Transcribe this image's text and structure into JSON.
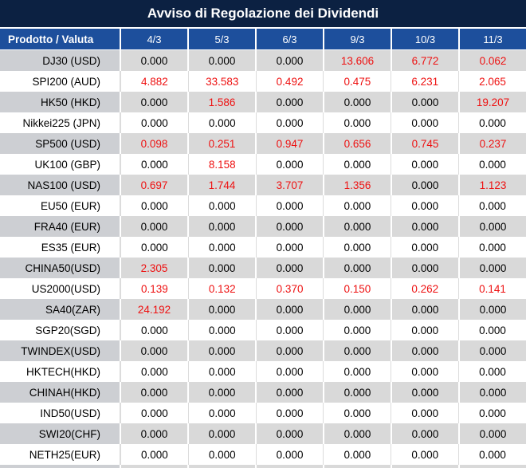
{
  "chart_data": {
    "type": "table",
    "title": "Avviso di Regolazione dei Dividendi",
    "columns": [
      "Prodotto / Valuta",
      "4/3",
      "5/3",
      "6/3",
      "9/3",
      "10/3",
      "11/3"
    ],
    "rows": [
      {
        "product": "DJ30 (USD)",
        "values": [
          "0.000",
          "0.000",
          "0.000",
          "13.606",
          "6.772",
          "0.062"
        ],
        "red": [
          false,
          false,
          false,
          true,
          true,
          true
        ]
      },
      {
        "product": "SPI200 (AUD)",
        "values": [
          "4.882",
          "33.583",
          "0.492",
          "0.475",
          "6.231",
          "2.065"
        ],
        "red": [
          true,
          true,
          true,
          true,
          true,
          true
        ]
      },
      {
        "product": "HK50 (HKD)",
        "values": [
          "0.000",
          "1.586",
          "0.000",
          "0.000",
          "0.000",
          "19.207"
        ],
        "red": [
          false,
          true,
          false,
          false,
          false,
          true
        ]
      },
      {
        "product": "Nikkei225 (JPN)",
        "values": [
          "0.000",
          "0.000",
          "0.000",
          "0.000",
          "0.000",
          "0.000"
        ],
        "red": [
          false,
          false,
          false,
          false,
          false,
          false
        ]
      },
      {
        "product": "SP500 (USD)",
        "values": [
          "0.098",
          "0.251",
          "0.947",
          "0.656",
          "0.745",
          "0.237"
        ],
        "red": [
          true,
          true,
          true,
          true,
          true,
          true
        ]
      },
      {
        "product": "UK100 (GBP)",
        "values": [
          "0.000",
          "8.158",
          "0.000",
          "0.000",
          "0.000",
          "0.000"
        ],
        "red": [
          false,
          true,
          false,
          false,
          false,
          false
        ]
      },
      {
        "product": "NAS100 (USD)",
        "values": [
          "0.697",
          "1.744",
          "3.707",
          "1.356",
          "0.000",
          "1.123"
        ],
        "red": [
          true,
          true,
          true,
          true,
          false,
          true
        ]
      },
      {
        "product": "EU50 (EUR)",
        "values": [
          "0.000",
          "0.000",
          "0.000",
          "0.000",
          "0.000",
          "0.000"
        ],
        "red": [
          false,
          false,
          false,
          false,
          false,
          false
        ]
      },
      {
        "product": "FRA40 (EUR)",
        "values": [
          "0.000",
          "0.000",
          "0.000",
          "0.000",
          "0.000",
          "0.000"
        ],
        "red": [
          false,
          false,
          false,
          false,
          false,
          false
        ]
      },
      {
        "product": "ES35 (EUR)",
        "values": [
          "0.000",
          "0.000",
          "0.000",
          "0.000",
          "0.000",
          "0.000"
        ],
        "red": [
          false,
          false,
          false,
          false,
          false,
          false
        ]
      },
      {
        "product": "CHINA50(USD)",
        "values": [
          "2.305",
          "0.000",
          "0.000",
          "0.000",
          "0.000",
          "0.000"
        ],
        "red": [
          true,
          false,
          false,
          false,
          false,
          false
        ]
      },
      {
        "product": "US2000(USD)",
        "values": [
          "0.139",
          "0.132",
          "0.370",
          "0.150",
          "0.262",
          "0.141"
        ],
        "red": [
          true,
          true,
          true,
          true,
          true,
          true
        ]
      },
      {
        "product": "SA40(ZAR)",
        "values": [
          "24.192",
          "0.000",
          "0.000",
          "0.000",
          "0.000",
          "0.000"
        ],
        "red": [
          true,
          false,
          false,
          false,
          false,
          false
        ]
      },
      {
        "product": "SGP20(SGD)",
        "values": [
          "0.000",
          "0.000",
          "0.000",
          "0.000",
          "0.000",
          "0.000"
        ],
        "red": [
          false,
          false,
          false,
          false,
          false,
          false
        ]
      },
      {
        "product": "TWINDEX(USD)",
        "values": [
          "0.000",
          "0.000",
          "0.000",
          "0.000",
          "0.000",
          "0.000"
        ],
        "red": [
          false,
          false,
          false,
          false,
          false,
          false
        ]
      },
      {
        "product": "HKTECH(HKD)",
        "values": [
          "0.000",
          "0.000",
          "0.000",
          "0.000",
          "0.000",
          "0.000"
        ],
        "red": [
          false,
          false,
          false,
          false,
          false,
          false
        ]
      },
      {
        "product": "CHINAH(HKD)",
        "values": [
          "0.000",
          "0.000",
          "0.000",
          "0.000",
          "0.000",
          "0.000"
        ],
        "red": [
          false,
          false,
          false,
          false,
          false,
          false
        ]
      },
      {
        "product": "IND50(USD)",
        "values": [
          "0.000",
          "0.000",
          "0.000",
          "0.000",
          "0.000",
          "0.000"
        ],
        "red": [
          false,
          false,
          false,
          false,
          false,
          false
        ]
      },
      {
        "product": "SWI20(CHF)",
        "values": [
          "0.000",
          "0.000",
          "0.000",
          "0.000",
          "0.000",
          "0.000"
        ],
        "red": [
          false,
          false,
          false,
          false,
          false,
          false
        ]
      },
      {
        "product": "NETH25(EUR)",
        "values": [
          "0.000",
          "0.000",
          "0.000",
          "0.000",
          "0.000",
          "0.000"
        ],
        "red": [
          false,
          false,
          false,
          false,
          false,
          false
        ]
      }
    ]
  },
  "colors": {
    "title_bg": "#0c2142",
    "header_bg": "#1d4f9c",
    "header_text": "#ffffff",
    "row_stripe_bg": "#d9d9d9",
    "row_stripe_label_bg": "#cdcfd3",
    "text": "#000000",
    "negative_value": "#ee1111"
  }
}
